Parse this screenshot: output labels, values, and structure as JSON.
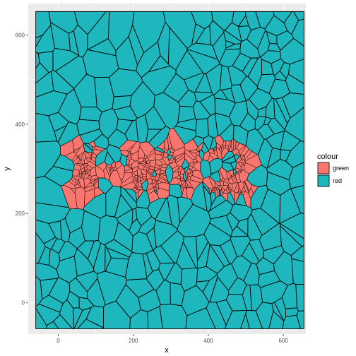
{
  "chart_data": {
    "type": "voronoi",
    "title": "",
    "xlabel": "x",
    "ylabel": "y",
    "xlim": [
      -80,
      660
    ],
    "ylim": [
      -70,
      670
    ],
    "xticks": [
      0,
      200,
      400,
      600
    ],
    "yticks": [
      0,
      200,
      400,
      600
    ],
    "grid": true,
    "legend": {
      "title": "colour",
      "position": "right",
      "entries": [
        {
          "label": "green",
          "color": "#F8766D"
        },
        {
          "label": "red",
          "color": "#1FB7BE"
        }
      ]
    },
    "panel_background": "#EBEBEB",
    "tile_border_color": "#000000",
    "voronoi_bounds": {
      "x": [
        -60,
        655
      ],
      "y": [
        -58,
        652
      ]
    },
    "text_region": {
      "series": "green",
      "text": "X-WV2",
      "x_range": [
        35,
        520
      ],
      "y_range": [
        245,
        355
      ]
    },
    "series": [
      {
        "name": "green",
        "color": "#F8766D",
        "region": "points tracing the text 'X-WV2'"
      },
      {
        "name": "red",
        "color": "#1FB7BE",
        "region": "background points filling the rest of the box"
      }
    ]
  }
}
